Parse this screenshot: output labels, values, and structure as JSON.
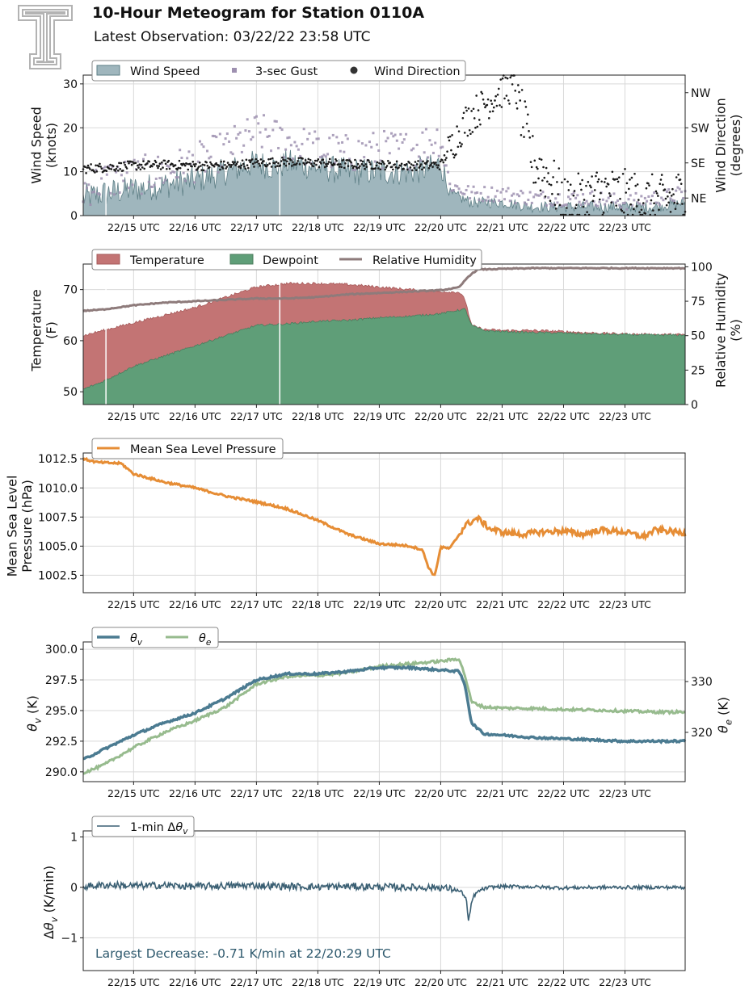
{
  "header": {
    "title": "10-Hour Meteogram for Station 0110A",
    "subtitle": "Latest Observation: 03/22/22 23:58 UTC"
  },
  "colors": {
    "wind_fill": "#9fb6bd",
    "wind_edge": "#5e7f86",
    "gust": "#9e90b0",
    "wind_dir": "#1a1a1a",
    "temperature": "#c37474",
    "dewpoint": "#5f9e78",
    "rh": "#8e7b7b",
    "pressure": "#e68d35",
    "theta_v": "#4b7b91",
    "theta_e": "#97bb8e",
    "dtheta": "#3a5f73",
    "annotation": "#2f5a6e",
    "logo": "#b3b3b3"
  },
  "x_tick_labels": [
    "22/15 UTC",
    "22/16 UTC",
    "22/17 UTC",
    "22/18 UTC",
    "22/19 UTC",
    "22/20 UTC",
    "22/21 UTC",
    "22/22 UTC",
    "22/23 UTC"
  ],
  "chart_data": [
    {
      "id": "wind",
      "type": "area",
      "x_range_utc_hour": [
        14.18,
        23.98
      ],
      "ylabel": "Wind Speed\n(knots)",
      "ylim": [
        0,
        32
      ],
      "yticks": [
        0,
        10,
        20,
        30
      ],
      "y2label": "Wind Direction\n(degrees)",
      "y2lim": [
        0,
        360
      ],
      "y2ticks": [
        {
          "value": 45,
          "label": "NE"
        },
        {
          "value": 135,
          "label": "SE"
        },
        {
          "value": 225,
          "label": "SW"
        },
        {
          "value": 315,
          "label": "NW"
        }
      ],
      "grid": true,
      "legend": "top-left",
      "legend_entries": [
        "Wind Speed",
        "3-sec Gust",
        "Wind Direction"
      ],
      "series": [
        {
          "name": "Wind Speed",
          "x": [
            14.18,
            14.5,
            15.0,
            15.5,
            16.0,
            16.5,
            17.0,
            17.3,
            17.5,
            18.0,
            18.5,
            19.0,
            19.5,
            19.9,
            20.0,
            20.15,
            20.5,
            21.0,
            21.5,
            22.0,
            22.5,
            23.0,
            23.5,
            23.98
          ],
          "values": [
            4,
            5,
            6,
            7,
            8,
            10,
            12,
            11,
            12,
            11,
            10,
            10,
            10,
            11,
            12,
            5,
            3,
            3,
            2,
            2,
            2,
            2,
            2,
            3
          ]
        },
        {
          "name": "3-sec Gust",
          "x": [
            14.18,
            14.5,
            15.0,
            15.5,
            16.0,
            16.5,
            17.0,
            17.5,
            18.0,
            18.5,
            19.0,
            19.5,
            20.0,
            20.15,
            20.5,
            21.0,
            21.5,
            22.0,
            22.5,
            23.0,
            23.5,
            23.98
          ],
          "values": [
            6,
            8,
            9,
            10,
            12,
            15,
            19,
            17,
            15,
            14,
            15,
            15,
            18,
            7,
            5,
            5,
            4,
            4,
            4,
            3,
            4,
            5
          ]
        },
        {
          "name": "Wind Direction",
          "x": [
            14.18,
            14.5,
            15.0,
            15.5,
            16.0,
            16.5,
            17.0,
            17.5,
            18.0,
            18.5,
            19.0,
            19.5,
            20.0,
            20.2,
            20.4,
            20.6,
            20.8,
            21.0,
            21.2,
            21.5,
            21.8,
            22.0,
            22.3,
            22.6,
            23.0,
            23.3,
            23.6,
            23.98
          ],
          "values": [
            120,
            123,
            128,
            130,
            128,
            128,
            135,
            138,
            135,
            132,
            130,
            128,
            130,
            185,
            240,
            270,
            295,
            320,
            335,
            140,
            90,
            30,
            40,
            60,
            50,
            40,
            35,
            55
          ]
        }
      ]
    },
    {
      "id": "thermo",
      "type": "area",
      "x_range_utc_hour": [
        14.18,
        23.98
      ],
      "ylabel": "Temperature\n(F)",
      "ylim": [
        47.5,
        75
      ],
      "yticks": [
        50,
        60,
        70
      ],
      "y2label": "Relative Humidity\n(%)",
      "y2lim": [
        0,
        102
      ],
      "y2ticks": [
        0,
        25,
        50,
        75,
        100
      ],
      "grid": true,
      "legend": "top-left",
      "series": [
        {
          "name": "Temperature",
          "x": [
            14.18,
            14.5,
            15.0,
            15.5,
            16.0,
            16.5,
            17.0,
            17.5,
            18.0,
            18.5,
            19.0,
            19.5,
            20.0,
            20.3,
            20.4,
            20.5,
            20.7,
            21.0,
            21.5,
            22.0,
            22.5,
            23.0,
            23.5,
            23.98
          ],
          "values": [
            61,
            62,
            63.5,
            65,
            66.5,
            68.5,
            70.5,
            71.2,
            71.2,
            71,
            70.5,
            70,
            69.6,
            69.5,
            68,
            63,
            62.2,
            62,
            62,
            61.8,
            61.5,
            61.3,
            61.2,
            61.2
          ]
        },
        {
          "name": "Dewpoint",
          "x": [
            14.18,
            14.5,
            15.0,
            15.5,
            16.0,
            16.5,
            17.0,
            17.5,
            18.0,
            18.5,
            19.0,
            19.5,
            20.0,
            20.3,
            20.4,
            20.5,
            20.7,
            21.0,
            21.5,
            22.0,
            22.5,
            23.0,
            23.5,
            23.98
          ],
          "values": [
            50.5,
            52,
            55,
            57,
            59,
            61,
            63,
            63.3,
            63.8,
            64,
            64.5,
            64.8,
            65.3,
            66,
            66.2,
            63,
            62,
            61.8,
            61.6,
            61.5,
            61.3,
            61.2,
            61.1,
            61.1
          ]
        },
        {
          "name": "Relative Humidity",
          "x": [
            14.18,
            14.5,
            15.0,
            15.5,
            16.0,
            16.5,
            17.0,
            17.5,
            18.0,
            18.5,
            19.0,
            19.5,
            20.0,
            20.3,
            20.45,
            20.6,
            21.0,
            21.5,
            22.0,
            22.5,
            23.0,
            23.5,
            23.98
          ],
          "values": [
            68,
            69,
            72,
            74,
            75,
            76,
            77,
            77,
            78,
            80,
            81,
            82,
            83,
            85,
            93,
            98,
            98.5,
            99,
            99,
            99,
            99,
            99,
            99
          ]
        }
      ]
    },
    {
      "id": "pressure",
      "type": "line",
      "x_range_utc_hour": [
        14.18,
        23.98
      ],
      "ylabel": "Mean Sea Level\nPressure (hPa)",
      "ylim": [
        1001.0,
        1013.0
      ],
      "yticks": [
        1002.5,
        1005.0,
        1007.5,
        1010.0,
        1012.5
      ],
      "grid": true,
      "legend": "top-left",
      "series": [
        {
          "name": "Mean Sea Level Pressure",
          "x": [
            14.18,
            14.4,
            14.8,
            15.0,
            15.5,
            16.0,
            16.5,
            17.0,
            17.5,
            18.0,
            18.5,
            19.0,
            19.3,
            19.5,
            19.7,
            19.8,
            19.9,
            20.0,
            20.15,
            20.4,
            20.6,
            20.8,
            21.0,
            21.3,
            21.6,
            22.0,
            22.3,
            22.6,
            23.0,
            23.3,
            23.5,
            23.7,
            23.98
          ],
          "values": [
            1012.5,
            1012.2,
            1012.1,
            1011.2,
            1010.5,
            1010.0,
            1009.3,
            1008.8,
            1008.2,
            1007.2,
            1006.0,
            1005.2,
            1005.1,
            1005.0,
            1004.7,
            1003.2,
            1002.4,
            1004.9,
            1004.8,
            1006.8,
            1007.4,
            1006.5,
            1006.2,
            1006.0,
            1006.2,
            1006.3,
            1006.0,
            1006.4,
            1006.2,
            1005.8,
            1006.4,
            1006.3,
            1006.1
          ]
        }
      ]
    },
    {
      "id": "theta",
      "type": "line",
      "x_range_utc_hour": [
        14.18,
        23.98
      ],
      "ylabel": "θv (K)",
      "ylim": [
        289.2,
        300.6
      ],
      "yticks": [
        290.0,
        292.5,
        295.0,
        297.5,
        300.0
      ],
      "y2label": "θe (K)",
      "y2lim": [
        310.3,
        337.8
      ],
      "y2ticks": [
        320,
        330
      ],
      "grid": true,
      "legend": "top-left",
      "series": [
        {
          "name": "θv",
          "x": [
            14.18,
            14.5,
            15.0,
            15.5,
            16.0,
            16.5,
            17.0,
            17.5,
            18.0,
            18.5,
            19.0,
            19.5,
            20.0,
            20.3,
            20.4,
            20.5,
            20.7,
            21.0,
            21.5,
            22.0,
            22.5,
            23.0,
            23.5,
            23.98
          ],
          "values": [
            291.0,
            291.8,
            293.0,
            294.0,
            294.8,
            296.0,
            297.5,
            298.0,
            298.0,
            298.2,
            298.5,
            298.5,
            298.3,
            298.2,
            297.0,
            294.0,
            293.1,
            293.0,
            292.8,
            292.7,
            292.6,
            292.5,
            292.5,
            292.5
          ]
        },
        {
          "name": "θe",
          "x": [
            14.18,
            14.5,
            15.0,
            15.5,
            16.0,
            16.5,
            17.0,
            17.5,
            18.0,
            18.5,
            19.0,
            19.5,
            20.0,
            20.3,
            20.4,
            20.5,
            20.7,
            21.0,
            21.5,
            22.0,
            22.5,
            23.0,
            23.5,
            23.98
          ],
          "values": [
            312.0,
            313.5,
            317.0,
            320.0,
            322.3,
            325.0,
            329.5,
            331.0,
            331.2,
            331.8,
            333.0,
            333.5,
            334.0,
            334.5,
            331.0,
            326.0,
            325.0,
            324.8,
            324.7,
            324.5,
            324.4,
            324.2,
            324.0,
            324.0
          ]
        }
      ]
    },
    {
      "id": "dtheta",
      "type": "line",
      "x_range_utc_hour": [
        14.18,
        23.98
      ],
      "ylabel": "Δθv (K/min)",
      "ylim": [
        -1.65,
        1.12
      ],
      "yticks": [
        -1,
        0,
        1
      ],
      "grid": true,
      "legend": "top-left",
      "annotation": "Largest Decrease: -0.71 K/min at 22/20:29 UTC",
      "series": [
        {
          "name": "1-min Δθv",
          "x": [
            14.18,
            14.6,
            15.0,
            15.5,
            16.0,
            16.5,
            17.0,
            17.5,
            18.0,
            18.5,
            19.0,
            19.5,
            20.0,
            20.25,
            20.35,
            20.42,
            20.45,
            20.48,
            20.5,
            20.55,
            20.65,
            20.8,
            21.0,
            21.5,
            22.0,
            22.5,
            23.0,
            23.5,
            23.98
          ],
          "values": [
            0.02,
            0.05,
            0.03,
            0.04,
            0.02,
            0.03,
            0.04,
            0.02,
            0.01,
            0.02,
            0.01,
            0.0,
            0.0,
            -0.05,
            -0.1,
            -0.25,
            -0.71,
            -0.5,
            -0.3,
            -0.15,
            -0.05,
            0.0,
            0.02,
            0.01,
            -0.01,
            0.0,
            0.0,
            0.0,
            0.0
          ]
        }
      ]
    }
  ]
}
